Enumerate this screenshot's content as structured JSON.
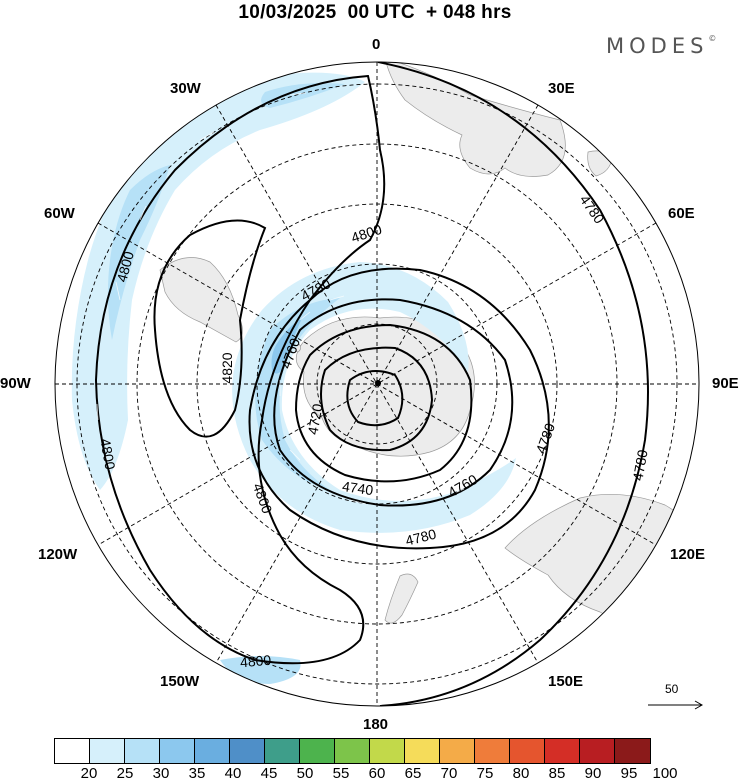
{
  "header": {
    "title": "10/03/2025  00 UTC  + 048 hrs",
    "brand": "MODES",
    "brand_mark": "©"
  },
  "longitude_labels": {
    "lon_0": "0",
    "lon_30e": "30E",
    "lon_60e": "60E",
    "lon_90e": "90E",
    "lon_120e": "120E",
    "lon_150e": "150E",
    "lon_180": "180",
    "lon_150w": "150W",
    "lon_120w": "120W",
    "lon_90w": "90W",
    "lon_60w": "60W",
    "lon_30w": "30W"
  },
  "contour_labels": [
    "4800",
    "4800",
    "4780",
    "4780",
    "4820",
    "4760",
    "4720",
    "4740",
    "4760",
    "4780",
    "4800",
    "4780",
    "4780",
    "4800",
    "4800"
  ],
  "vector_scale": {
    "label": "50"
  },
  "colorbar": {
    "labels": [
      "20",
      "25",
      "30",
      "35",
      "40",
      "45",
      "50",
      "55",
      "60",
      "65",
      "70",
      "75",
      "80",
      "85",
      "90",
      "95",
      "100"
    ],
    "colors": [
      "#ffffff",
      "#d6f0fb",
      "#b6e1f7",
      "#8cc8ee",
      "#6aaee0",
      "#4f8fc8",
      "#3e9e8a",
      "#4db34d",
      "#7dc44a",
      "#c2d94a",
      "#f5dc5a",
      "#f4ab48",
      "#ef7c3a",
      "#e5552e",
      "#d42e26",
      "#b81e22",
      "#8b1a1a"
    ]
  },
  "map": {
    "land_color": "#ececec",
    "shading_colors": [
      "#d6f0fb",
      "#b6e1f7",
      "#8cc8ee",
      "#6aaee0"
    ],
    "contour_color": "#000000"
  }
}
